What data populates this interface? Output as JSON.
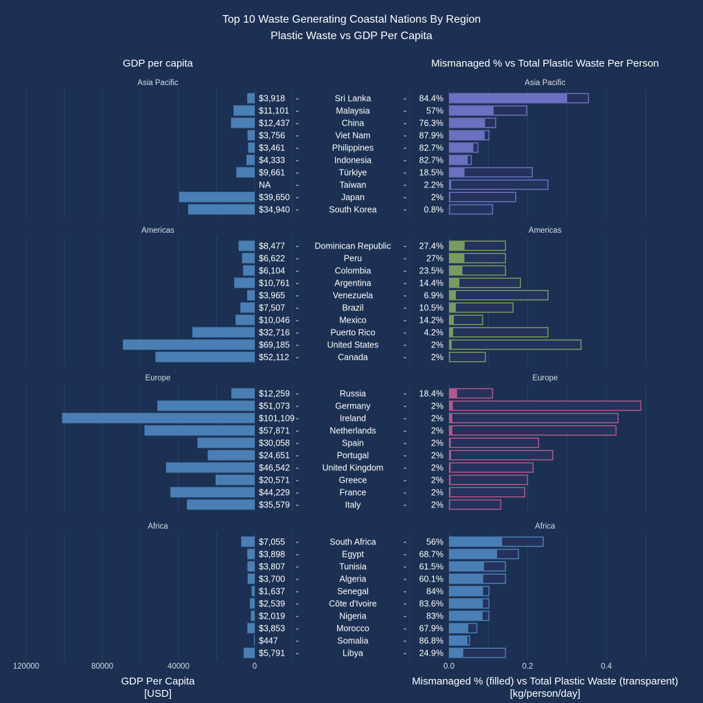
{
  "colors": {
    "background": "#1b3052",
    "gdp_bar": "#4a7fb5",
    "grid": "#2b4266",
    "empty_fill": "#24325c",
    "Asia Pacific": "#6b70c0",
    "Americas": "#7a9a60",
    "Europe": "#b05a8a",
    "Africa": "#4a7fb5"
  },
  "chart_data": {
    "type": "bar",
    "title": "Top 10 Waste Generating Coastal Nations By Region",
    "subtitle": "Plastic Waste vs GDP Per Capita",
    "left_panel_title": "GDP per capita",
    "right_panel_title": "Mismanaged % vs Total Plastic Waste Per Person",
    "left_xlabel": "GDP Per Capita",
    "left_xlabel_unit": "[USD]",
    "right_xlabel": "Mismanaged % (filled) vs Total Plastic Waste (transparent)",
    "right_xlabel_unit": "[kg/person/day]",
    "left_xlim": [
      120000,
      0
    ],
    "left_ticks": [
      "120000",
      "80000",
      "40000",
      "0"
    ],
    "left_tick_values": [
      120000,
      80000,
      40000,
      0
    ],
    "right_xlim": [
      0,
      0.5
    ],
    "right_ticks": [
      "0.0",
      "0.2",
      "0.4"
    ],
    "right_tick_values": [
      0,
      0.2,
      0.4
    ],
    "grid": true,
    "regions": [
      {
        "name": "Asia Pacific",
        "countries": [
          {
            "country": "Sri Lanka",
            "gdp": 3918,
            "gdp_label": "$3,918",
            "mismanaged_pct": 84.4,
            "pct_label": "84.4%",
            "total_waste": 0.356
          },
          {
            "country": "Malaysia",
            "gdp": 11101,
            "gdp_label": "$11,101",
            "mismanaged_pct": 57,
            "pct_label": "57%",
            "total_waste": 0.199
          },
          {
            "country": "China",
            "gdp": 12437,
            "gdp_label": "$12,437",
            "mismanaged_pct": 76.3,
            "pct_label": "76.3%",
            "total_waste": 0.12
          },
          {
            "country": "Viet Nam",
            "gdp": 3756,
            "gdp_label": "$3,756",
            "mismanaged_pct": 87.9,
            "pct_label": "87.9%",
            "total_waste": 0.103
          },
          {
            "country": "Philippines",
            "gdp": 3461,
            "gdp_label": "$3,461",
            "mismanaged_pct": 82.7,
            "pct_label": "82.7%",
            "total_waste": 0.075
          },
          {
            "country": "Indonesia",
            "gdp": 4333,
            "gdp_label": "$4,333",
            "mismanaged_pct": 82.7,
            "pct_label": "82.7%",
            "total_waste": 0.058
          },
          {
            "country": "Türkiye",
            "gdp": 9661,
            "gdp_label": "$9,661",
            "mismanaged_pct": 18.5,
            "pct_label": "18.5%",
            "total_waste": 0.213
          },
          {
            "country": "Taiwan",
            "gdp": null,
            "gdp_label": "NA",
            "mismanaged_pct": 2.2,
            "pct_label": "2.2%",
            "total_waste": 0.253
          },
          {
            "country": "Japan",
            "gdp": 39650,
            "gdp_label": "$39,650",
            "mismanaged_pct": 2,
            "pct_label": "2%",
            "total_waste": 0.171
          },
          {
            "country": "South Korea",
            "gdp": 34940,
            "gdp_label": "$34,940",
            "mismanaged_pct": 0.8,
            "pct_label": "0.8%",
            "total_waste": 0.112
          }
        ]
      },
      {
        "name": "Americas",
        "countries": [
          {
            "country": "Dominican Republic",
            "gdp": 8477,
            "gdp_label": "$8,477",
            "mismanaged_pct": 27.4,
            "pct_label": "27.4%",
            "total_waste": 0.145
          },
          {
            "country": "Peru",
            "gdp": 6622,
            "gdp_label": "$6,622",
            "mismanaged_pct": 27,
            "pct_label": "27%",
            "total_waste": 0.145
          },
          {
            "country": "Colombia",
            "gdp": 6104,
            "gdp_label": "$6,104",
            "mismanaged_pct": 23.5,
            "pct_label": "23.5%",
            "total_waste": 0.145
          },
          {
            "country": "Argentina",
            "gdp": 10761,
            "gdp_label": "$10,761",
            "mismanaged_pct": 14.4,
            "pct_label": "14.4%",
            "total_waste": 0.183
          },
          {
            "country": "Venezuela",
            "gdp": 3965,
            "gdp_label": "$3,965",
            "mismanaged_pct": 6.9,
            "pct_label": "6.9%",
            "total_waste": 0.253
          },
          {
            "country": "Brazil",
            "gdp": 7507,
            "gdp_label": "$7,507",
            "mismanaged_pct": 10.5,
            "pct_label": "10.5%",
            "total_waste": 0.164
          },
          {
            "country": "Mexico",
            "gdp": 10046,
            "gdp_label": "$10,046",
            "mismanaged_pct": 14.2,
            "pct_label": "14.2%",
            "total_waste": 0.087
          },
          {
            "country": "Puerto Rico",
            "gdp": 32716,
            "gdp_label": "$32,716",
            "mismanaged_pct": 4.2,
            "pct_label": "4.2%",
            "total_waste": 0.253
          },
          {
            "country": "United States",
            "gdp": 69185,
            "gdp_label": "$69,185",
            "mismanaged_pct": 2,
            "pct_label": "2%",
            "total_waste": 0.337
          },
          {
            "country": "Canada",
            "gdp": 52112,
            "gdp_label": "$52,112",
            "mismanaged_pct": 2,
            "pct_label": "2%",
            "total_waste": 0.094
          }
        ]
      },
      {
        "name": "Europe",
        "countries": [
          {
            "country": "Russia",
            "gdp": 12259,
            "gdp_label": "$12,259",
            "mismanaged_pct": 18.4,
            "pct_label": "18.4%",
            "total_waste": 0.112
          },
          {
            "country": "Germany",
            "gdp": 51073,
            "gdp_label": "$51,073",
            "mismanaged_pct": 2,
            "pct_label": "2%",
            "total_waste": 0.489
          },
          {
            "country": "Ireland",
            "gdp": 101109,
            "gdp_label": "$101,109",
            "mismanaged_pct": 2,
            "pct_label": "2%",
            "total_waste": 0.431
          },
          {
            "country": "Netherlands",
            "gdp": 57871,
            "gdp_label": "$57,871",
            "mismanaged_pct": 2,
            "pct_label": "2%",
            "total_waste": 0.426
          },
          {
            "country": "Spain",
            "gdp": 30058,
            "gdp_label": "$30,058",
            "mismanaged_pct": 2,
            "pct_label": "2%",
            "total_waste": 0.229
          },
          {
            "country": "Portugal",
            "gdp": 24651,
            "gdp_label": "$24,651",
            "mismanaged_pct": 2,
            "pct_label": "2%",
            "total_waste": 0.265
          },
          {
            "country": "United Kingdom",
            "gdp": 46542,
            "gdp_label": "$46,542",
            "mismanaged_pct": 2,
            "pct_label": "2%",
            "total_waste": 0.215
          },
          {
            "country": "Greece",
            "gdp": 20571,
            "gdp_label": "$20,571",
            "mismanaged_pct": 2,
            "pct_label": "2%",
            "total_waste": 0.201
          },
          {
            "country": "France",
            "gdp": 44229,
            "gdp_label": "$44,229",
            "mismanaged_pct": 2,
            "pct_label": "2%",
            "total_waste": 0.194
          },
          {
            "country": "Italy",
            "gdp": 35579,
            "gdp_label": "$35,579",
            "mismanaged_pct": 2,
            "pct_label": "2%",
            "total_waste": 0.133
          }
        ]
      },
      {
        "name": "Africa",
        "countries": [
          {
            "country": "South Africa",
            "gdp": 7055,
            "gdp_label": "$7,055",
            "mismanaged_pct": 56,
            "pct_label": "56%",
            "total_waste": 0.241
          },
          {
            "country": "Egypt",
            "gdp": 3898,
            "gdp_label": "$3,898",
            "mismanaged_pct": 68.7,
            "pct_label": "68.7%",
            "total_waste": 0.178
          },
          {
            "country": "Tunisia",
            "gdp": 3807,
            "gdp_label": "$3,807",
            "mismanaged_pct": 61.5,
            "pct_label": "61.5%",
            "total_waste": 0.145
          },
          {
            "country": "Algeria",
            "gdp": 3700,
            "gdp_label": "$3,700",
            "mismanaged_pct": 60.1,
            "pct_label": "60.1%",
            "total_waste": 0.145
          },
          {
            "country": "Senegal",
            "gdp": 1637,
            "gdp_label": "$1,637",
            "mismanaged_pct": 84,
            "pct_label": "84%",
            "total_waste": 0.103
          },
          {
            "country": "Côte d'Ivoire",
            "gdp": 2539,
            "gdp_label": "$2,539",
            "mismanaged_pct": 83.6,
            "pct_label": "83.6%",
            "total_waste": 0.103
          },
          {
            "country": "Nigeria",
            "gdp": 2019,
            "gdp_label": "$2,019",
            "mismanaged_pct": 83,
            "pct_label": "83%",
            "total_waste": 0.103
          },
          {
            "country": "Morocco",
            "gdp": 3853,
            "gdp_label": "$3,853",
            "mismanaged_pct": 67.9,
            "pct_label": "67.9%",
            "total_waste": 0.072
          },
          {
            "country": "Somalia",
            "gdp": 447,
            "gdp_label": "$447",
            "mismanaged_pct": 86.8,
            "pct_label": "86.8%",
            "total_waste": 0.054
          },
          {
            "country": "Libya",
            "gdp": 5791,
            "gdp_label": "$5,791",
            "mismanaged_pct": 24.9,
            "pct_label": "24.9%",
            "total_waste": 0.145
          }
        ]
      }
    ]
  }
}
